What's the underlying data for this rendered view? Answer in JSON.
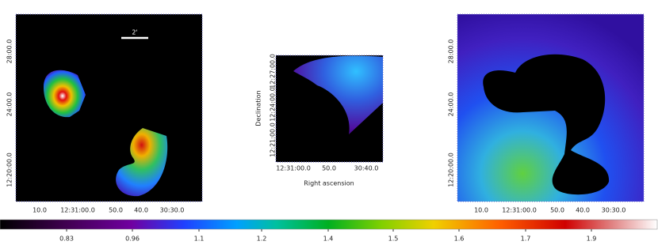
{
  "panels": [
    {
      "y_ticks": [
        "28:00.0",
        "24:00.0",
        "12:20:00.0"
      ],
      "x_ticks": [
        "10.0",
        "12:31:00.0",
        "50.0",
        "40.0",
        "30:30.0"
      ],
      "scale_bar": "2'"
    },
    {
      "y_ticks": [
        "12:27:00.0",
        "12:24:00.0",
        "12:21:00.0"
      ],
      "x_ticks": [
        "12:31:00.0",
        "50.0",
        "30:40.0"
      ],
      "y_axis_label": "Declination",
      "x_axis_label": "Right ascension"
    },
    {
      "y_ticks": [
        "28:00.0",
        "24:00.0",
        "12:20:00.0"
      ],
      "x_ticks": [
        "10.0",
        "12:31:00.0",
        "50.0",
        "40.0",
        "30:30.0"
      ]
    }
  ],
  "colorbar": {
    "ticks": [
      0.83,
      0.96,
      1.1,
      1.2,
      1.4,
      1.5,
      1.6,
      1.7,
      1.9
    ]
  }
}
